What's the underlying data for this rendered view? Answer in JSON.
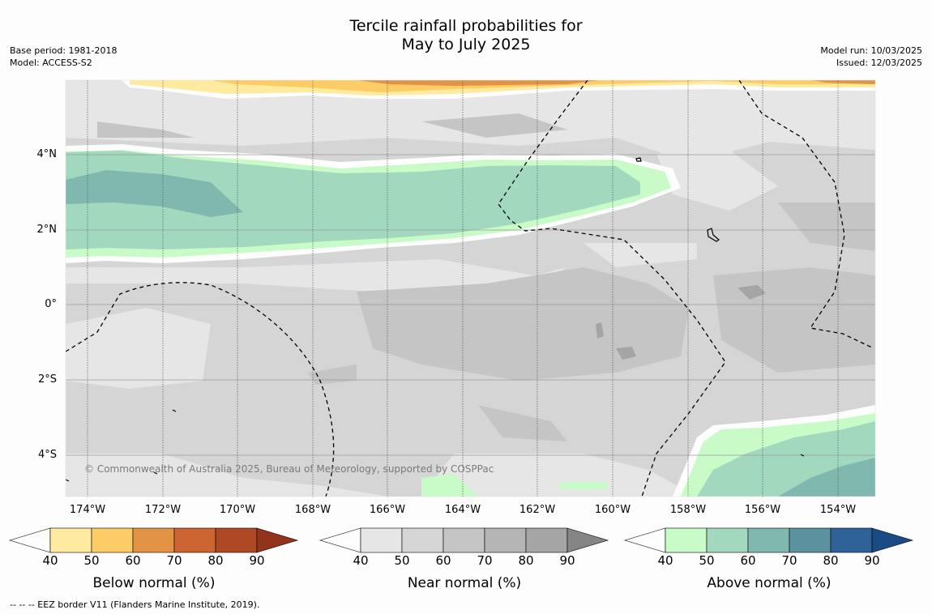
{
  "title_line1": "Tercile rainfall probabilities for",
  "title_line2": "May to July 2025",
  "base_period": "Base period: 1981-2018",
  "model": "Model: ACCESS-S2",
  "model_run": "Model run: 10/03/2025",
  "issued": "Issued: 12/03/2025",
  "map": {
    "lat_labels": [
      "4°N",
      "2°N",
      "0°",
      "2°S",
      "4°S"
    ],
    "lon_labels": [
      "174°W",
      "172°W",
      "170°W",
      "168°W",
      "166°W",
      "164°W",
      "162°W",
      "160°W",
      "158°W",
      "156°W",
      "154°W"
    ],
    "copyright": "© Commonwealth of Australia 2025, Bureau of Meteorology, supported by COSPPac"
  },
  "colorbars": [
    {
      "title": "Below normal (%)",
      "ticks": [
        "40",
        "50",
        "60",
        "70",
        "80",
        "90"
      ],
      "colors": [
        "#fdfdfd",
        "#feeba0",
        "#fecc66",
        "#e39346",
        "#cd6533",
        "#ae4825",
        "#93331c"
      ]
    },
    {
      "title": "Near normal (%)",
      "ticks": [
        "40",
        "50",
        "60",
        "70",
        "80",
        "90"
      ],
      "colors": [
        "#fdfdfd",
        "#e6e6e6",
        "#d5d5d5",
        "#c5c5c5",
        "#b5b5b5",
        "#a5a5a5",
        "#858585"
      ]
    },
    {
      "title": "Above normal (%)",
      "ticks": [
        "40",
        "50",
        "60",
        "70",
        "80",
        "90"
      ],
      "colors": [
        "#fdfdfd",
        "#c8fbc8",
        "#a2d9be",
        "#80b8b0",
        "#5c92a0",
        "#2f6298",
        "#1a4b85"
      ]
    }
  ],
  "footer": "-- -- -- EEZ border V11 (Flanders Marine Institute, 2019)."
}
